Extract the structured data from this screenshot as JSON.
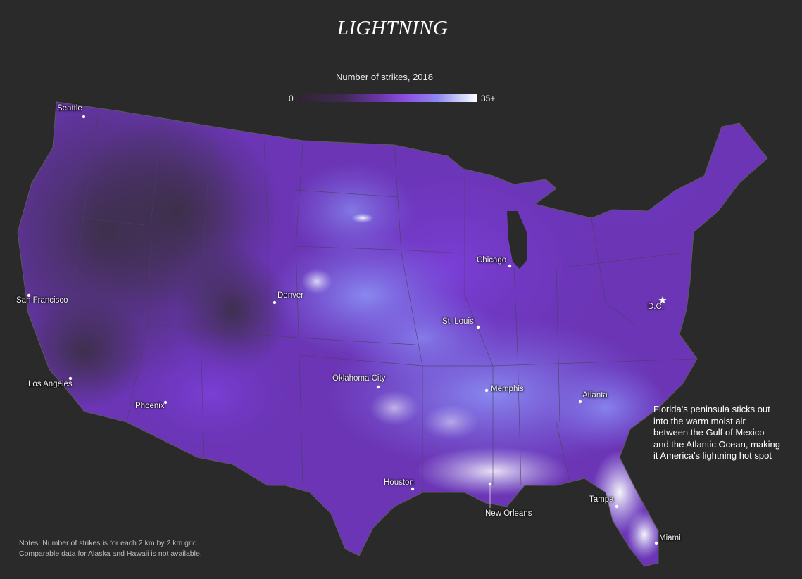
{
  "title": "LIGHTNING",
  "legend": {
    "title": "Number of strikes, 2018",
    "min_label": "0",
    "max_label": "35+",
    "colors": [
      "#2f2433",
      "#3e2a52",
      "#6a35a8",
      "#8a4fe0",
      "#8f86f0",
      "#cfd6fb",
      "#ffffff"
    ]
  },
  "cities": [
    {
      "name": "Seattle"
    },
    {
      "name": "San Francisco"
    },
    {
      "name": "Los Angeles"
    },
    {
      "name": "Phoenix"
    },
    {
      "name": "Denver"
    },
    {
      "name": "Oklahoma City"
    },
    {
      "name": "Houston"
    },
    {
      "name": "St. Louis"
    },
    {
      "name": "Chicago"
    },
    {
      "name": "Memphis"
    },
    {
      "name": "New Orleans"
    },
    {
      "name": "Atlanta"
    },
    {
      "name": "Tampa"
    },
    {
      "name": "Miami"
    },
    {
      "name": "D.C."
    }
  ],
  "annotation": "Florida's peninsula sticks out into the warm moist air between the Gulf of Mexico and the Atlantic Ocean, making it America's lightning hot spot",
  "notes": [
    "Notes: Number of strikes is for each 2 km by 2 km grid.",
    "Comparable data for Alaska and Hawaii is not available."
  ]
}
